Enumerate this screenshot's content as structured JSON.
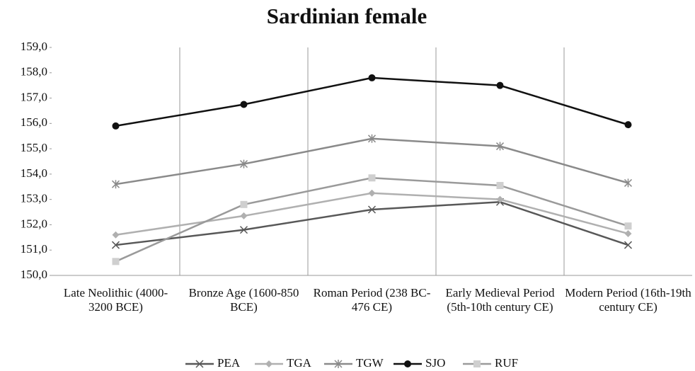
{
  "chart_data": {
    "type": "line",
    "title": "Sardinian female",
    "categories": [
      "Late Neolithic (4000-3200 BCE)",
      "Bronze Age (1600-850 BCE)",
      "Roman Period (238 BC-476 CE)",
      "Early Medieval Period (5th-10th century CE)",
      "Modern Period (16th-19th century CE)"
    ],
    "series": [
      {
        "name": "PEA",
        "color": "#585858",
        "marker": "x",
        "values": [
          151.2,
          151.8,
          152.6,
          152.9,
          151.2
        ]
      },
      {
        "name": "TGA",
        "color": "#b0b0b0",
        "marker": "diamond",
        "values": [
          151.6,
          152.35,
          153.25,
          153.0,
          151.65
        ]
      },
      {
        "name": "TGW",
        "color": "#8a8a8a",
        "marker": "star",
        "values": [
          153.6,
          154.4,
          155.4,
          155.1,
          153.65
        ]
      },
      {
        "name": "SJO",
        "color": "#111111",
        "marker": "circle",
        "values": [
          155.9,
          156.75,
          157.8,
          157.5,
          155.95
        ]
      },
      {
        "name": "RUF",
        "color": "#9a9a9a",
        "marker": "square",
        "values": [
          150.55,
          152.8,
          153.85,
          153.55,
          151.95
        ]
      }
    ],
    "ylim": [
      150,
      159
    ],
    "yticks": [
      {
        "value": 150,
        "label": "150,0"
      },
      {
        "value": 151,
        "label": "151,0"
      },
      {
        "value": 152,
        "label": "152,0"
      },
      {
        "value": 153,
        "label": "153,0"
      },
      {
        "value": 154,
        "label": "154,0"
      },
      {
        "value": 155,
        "label": "155,0"
      },
      {
        "value": 156,
        "label": "156,0"
      },
      {
        "value": 157,
        "label": "157,0"
      },
      {
        "value": 158,
        "label": "158,0"
      },
      {
        "value": 159,
        "label": "159,0"
      }
    ],
    "grid": "vertical",
    "legend": "bottom"
  }
}
